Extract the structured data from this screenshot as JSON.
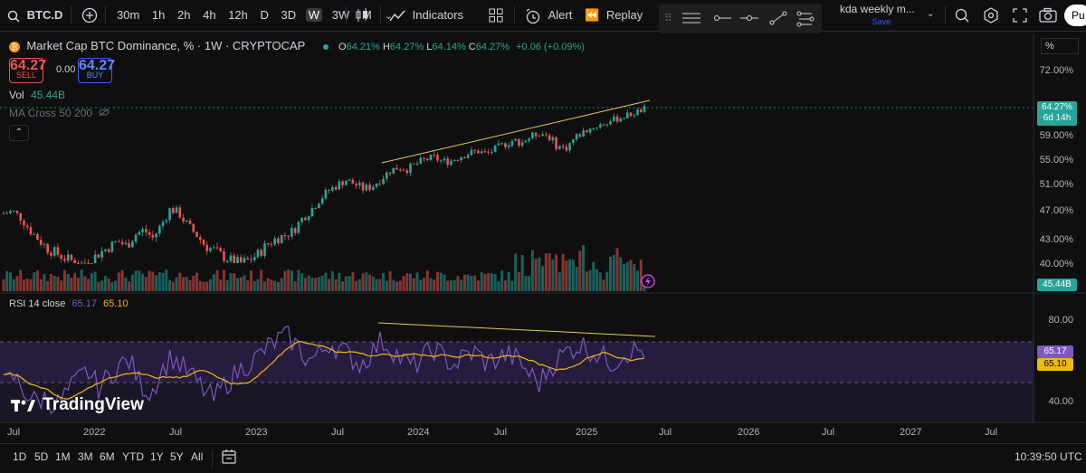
{
  "topbar": {
    "symbol": "BTC.D",
    "timeframes": [
      "30m",
      "1h",
      "2h",
      "4h",
      "12h",
      "D",
      "3D",
      "W",
      "3W",
      "M"
    ],
    "active_timeframe": "W",
    "indicators_label": "Indicators",
    "alert_label": "Alert",
    "replay_label": "Replay",
    "layout_name": "kda weekly m...",
    "layout_status": "Save",
    "publish_label": "Pu"
  },
  "legend": {
    "title": "Market Cap BTC Dominance, % · 1W · CRYPTOCAP",
    "open_label": "O",
    "open": "64.21%",
    "high_label": "H",
    "high": "64.27%",
    "low_label": "L",
    "low": "64.14%",
    "close_label": "C",
    "close": "64.27%",
    "change": "+0.06 (+0.09%)",
    "sell_price": "64.27",
    "sell_label": "SELL",
    "spread": "0.00",
    "buy_price": "64.27",
    "buy_label": "BUY",
    "vol_label": "Vol",
    "vol_value": "45.44B",
    "ma_label": "MA Cross 50 200"
  },
  "rsi_legend": {
    "label": "RSI 14 close",
    "rsi": "65.17",
    "ma": "65.10"
  },
  "price_scale": {
    "unit": "%",
    "labels": [
      "72.00%",
      "59.00%",
      "55.00%",
      "51.00%",
      "47.00%",
      "43.00%",
      "40.00%"
    ],
    "current_price": "64.27%",
    "countdown": "6d 14h",
    "volume_tag": "45.44B"
  },
  "rsi_scale": {
    "labels": [
      "80.00",
      "40.00"
    ],
    "rsi_tag": "65.17",
    "ma_tag": "65.10"
  },
  "x_axis": [
    "Jul",
    "2022",
    "Jul",
    "2023",
    "Jul",
    "2024",
    "Jul",
    "2025",
    "Jul",
    "2026",
    "Jul",
    "2027",
    "Jul"
  ],
  "bottombar": {
    "ranges": [
      "1D",
      "5D",
      "1M",
      "3M",
      "6M",
      "YTD",
      "1Y",
      "5Y",
      "All"
    ],
    "time": "10:39:50 UTC"
  },
  "watermark": "TradingView",
  "colors": {
    "up": "#26a69a",
    "down": "#ef5350",
    "rsi": "#7e57c2",
    "rsi_ma": "#f0b90b",
    "trend": "#e6c84f",
    "accent": "#2962ff"
  },
  "chart_data": {
    "type": "candlestick",
    "series_name": "BTC.D",
    "weekly_close_approx": [
      46.5,
      46.8,
      45.9,
      44.2,
      42.9,
      41.8,
      41.2,
      40.6,
      40.2,
      39.9,
      40.5,
      41.3,
      42.0,
      42.7,
      42.1,
      43.6,
      44.2,
      43.1,
      45.0,
      47.2,
      46.5,
      44.8,
      43.5,
      42.1,
      41.6,
      40.8,
      40.3,
      40.0,
      40.4,
      41.1,
      42.3,
      43.0,
      43.5,
      44.1,
      45.8,
      47.0,
      48.6,
      49.9,
      50.8,
      51.6,
      50.9,
      50.2,
      50.6,
      51.8,
      53.1,
      53.7,
      53.4,
      54.2,
      54.9,
      55.3,
      54.6,
      54.8,
      55.5,
      56.0,
      56.4,
      55.9,
      56.7,
      57.5,
      58.2,
      57.9,
      58.8,
      59.6,
      59.1,
      57.3,
      56.8,
      58.5,
      59.7,
      60.6,
      61.2,
      61.8,
      62.5,
      63.0,
      63.6,
      64.27
    ],
    "volume_note": "Volume bars shown under price",
    "rsi_values_approx": [
      48,
      52,
      45,
      40,
      42,
      38,
      44,
      50,
      55,
      47,
      52,
      58,
      60,
      49,
      44,
      55,
      62,
      57,
      52,
      46,
      41,
      48,
      53,
      58,
      61,
      66,
      70,
      72,
      67,
      60,
      63,
      69,
      66,
      62,
      58,
      64,
      70,
      66,
      60,
      57,
      62,
      66,
      61,
      58,
      63,
      64,
      59,
      61,
      63,
      60,
      54,
      49,
      57,
      62,
      66,
      68,
      65,
      62,
      59,
      64,
      65,
      65
    ],
    "rsi_levels": [
      80,
      70,
      60,
      50,
      40
    ],
    "annotations": [
      "Rising trendline on price",
      "Falling trendline on RSI (bearish divergence)"
    ]
  }
}
